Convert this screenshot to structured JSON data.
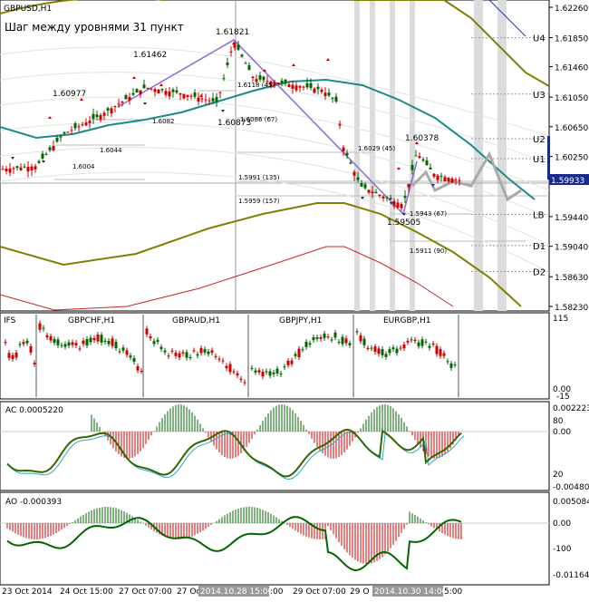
{
  "symbol": "GBPUSD,H1",
  "step_note": "Шаг между уровнями 31 пункт",
  "price_axis": [
    "1.62260",
    "1.61850",
    "1.61460",
    "1.61050",
    "1.60650",
    "1.60250",
    "1.59440",
    "1.59040",
    "1.58630",
    "1.58230"
  ],
  "price_badge": "1.59933",
  "levels": [
    {
      "label": "U4",
      "value": 1.6185
    },
    {
      "label": "U3",
      "value": 1.6109
    },
    {
      "label": "U2",
      "value": 1.6049
    },
    {
      "label": "U1",
      "value": 1.6022
    },
    {
      "label": "LB",
      "value": 1.5947
    },
    {
      "label": "D1",
      "value": 1.5905
    },
    {
      "label": "D2",
      "value": 1.587
    }
  ],
  "swing_labels": [
    "1.60977",
    "1.61462",
    "1.61821",
    "1.60873",
    "1.60378",
    "1.59505"
  ],
  "fib_labels": [
    "1.6004",
    "1.6044",
    "1.6082",
    "1.6118 (45)",
    "1.6086 (67)",
    "1.6029 (45)",
    "1.5991 (135)",
    "1.5959 (157)",
    "1.5943 (67)",
    "1.5911 (90)"
  ],
  "ifs": {
    "label": "IFS",
    "axis_top": "115",
    "axis_zero": "0.00",
    "axis_bottom": "-15",
    "instruments": [
      "GBPCHF,H1",
      "GBPAUD,H1",
      "GBPJPY,H1",
      "EURGBP,H1"
    ]
  },
  "ac": {
    "label": "AC 0.0005220",
    "axis": [
      "0.002223",
      "80",
      "0.00",
      "20",
      "-0.004809"
    ]
  },
  "ao": {
    "label": "AO -0.000393",
    "axis": [
      "0.005084",
      "0.00",
      "-100",
      "-0.011647"
    ]
  },
  "time_axis": [
    "23 Oct 2014",
    "24 Oct 15:00",
    "27 Oct 07:00",
    "27 Oc",
    "29 Oct 07:00",
    "29 O",
    "5:00"
  ],
  "time_highlights": [
    "2014.10.28 15:00",
    "2014.10.30 14:00"
  ],
  "colors": {
    "bull": "#cc0000",
    "bear": "#006600",
    "teal": "#1a8a8a",
    "olive": "#808000",
    "red_env": "#cc2222",
    "fib": "#8a6ad8",
    "badge": "#1a2a8a"
  },
  "chart_data": {
    "type": "line",
    "title": "GBPUSD,H1",
    "ylim": [
      1.5823,
      1.6226
    ],
    "x": [
      "2014-10-23 00:00",
      "2014-10-24 15:00",
      "2014-10-27 07:00",
      "2014-10-28 15:00",
      "2014-10-29 07:00",
      "2014-10-30 14:00",
      "2014-10-30 22:00"
    ],
    "series": [
      {
        "values": [
          1.6008,
          1.6022,
          1.6098,
          1.6124,
          1.6115,
          1.603,
          1.5993
        ]
      }
    ]
  }
}
